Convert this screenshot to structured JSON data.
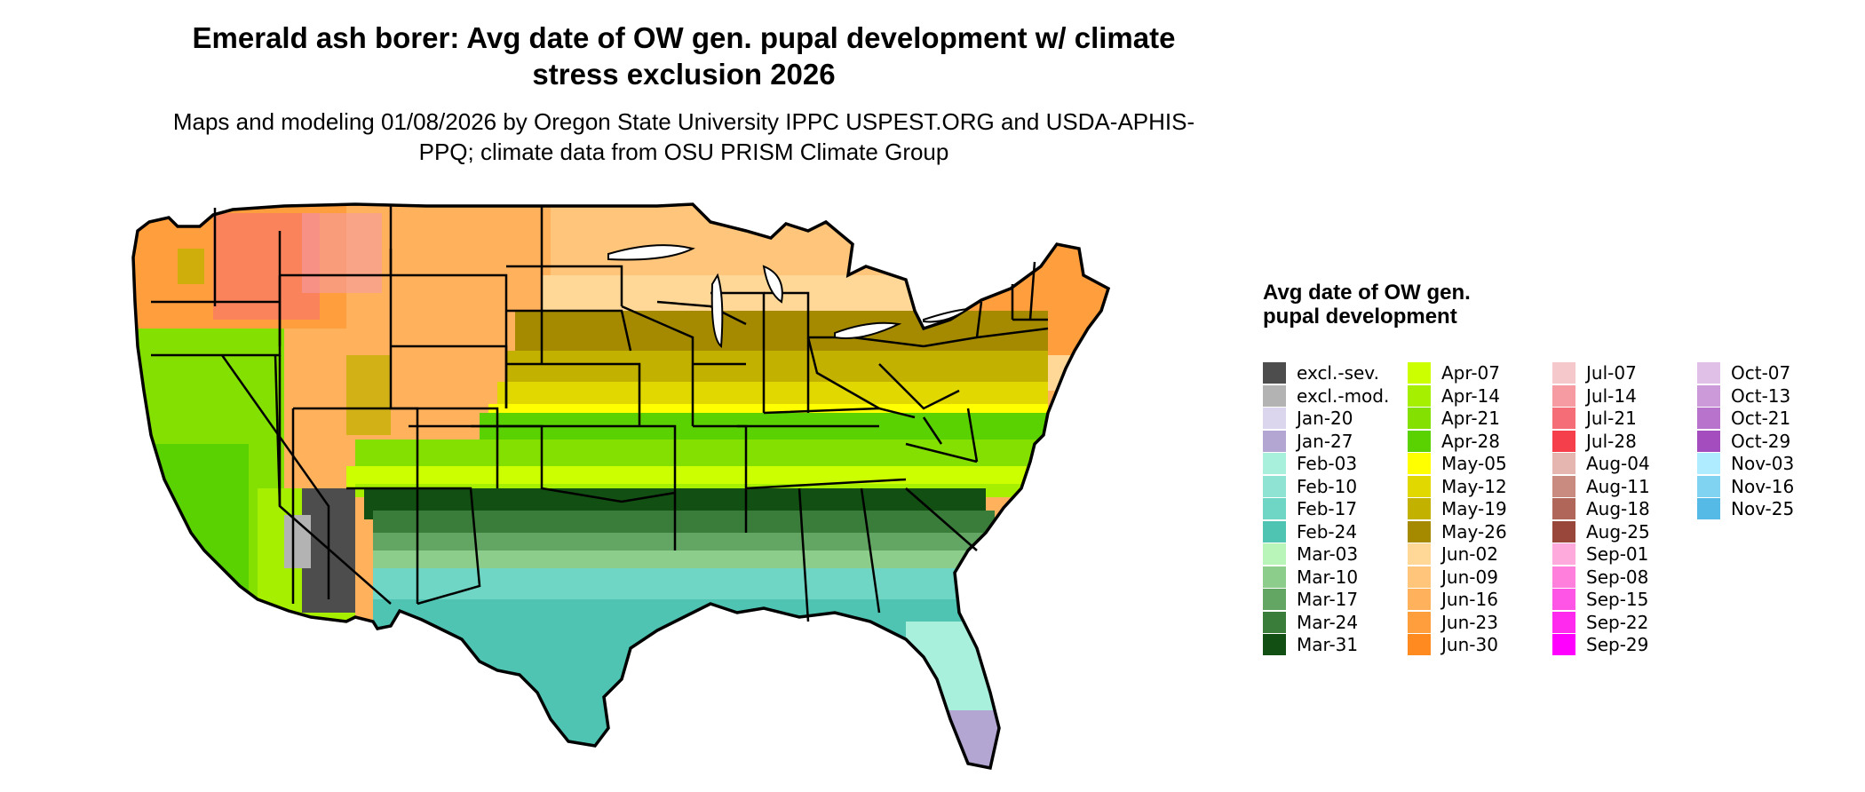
{
  "title": "Emerald ash borer: Avg date of OW gen. pupal development w/ climate stress exclusion 2026",
  "subtitle": "Maps and modeling 01/08/2026 by Oregon State University IPPC USPEST.ORG and USDA-APHIS-PPQ; climate data from OSU PRISM Climate Group",
  "legend": {
    "title": "Avg date of OW gen. pupal development",
    "items": [
      {
        "label": "excl.-sev.",
        "color": "#4d4d4d"
      },
      {
        "label": "excl.-mod.",
        "color": "#b3b3b3"
      },
      {
        "label": "Jan-20",
        "color": "#dcd5ee"
      },
      {
        "label": "Jan-27",
        "color": "#b3a6d2"
      },
      {
        "label": "Feb-03",
        "color": "#a8efdc"
      },
      {
        "label": "Feb-10",
        "color": "#8fe3d2"
      },
      {
        "label": "Feb-17",
        "color": "#6fd6c5"
      },
      {
        "label": "Feb-24",
        "color": "#4fc4b3"
      },
      {
        "label": "Mar-03",
        "color": "#b9f5b9"
      },
      {
        "label": "Mar-10",
        "color": "#8ccd8c"
      },
      {
        "label": "Mar-17",
        "color": "#63a563"
      },
      {
        "label": "Mar-24",
        "color": "#3a7c3a"
      },
      {
        "label": "Mar-31",
        "color": "#124f12"
      },
      {
        "label": "Apr-07",
        "color": "#ccff00"
      },
      {
        "label": "Apr-14",
        "color": "#a6ef00"
      },
      {
        "label": "Apr-21",
        "color": "#84e000"
      },
      {
        "label": "Apr-28",
        "color": "#5ad100"
      },
      {
        "label": "May-05",
        "color": "#ffff00"
      },
      {
        "label": "May-12",
        "color": "#e1d800"
      },
      {
        "label": "May-19",
        "color": "#c3b100"
      },
      {
        "label": "May-26",
        "color": "#a58a00"
      },
      {
        "label": "Jun-02",
        "color": "#ffd898"
      },
      {
        "label": "Jun-09",
        "color": "#ffc57a"
      },
      {
        "label": "Jun-16",
        "color": "#ffb15c"
      },
      {
        "label": "Jun-23",
        "color": "#ff9e3d"
      },
      {
        "label": "Jun-30",
        "color": "#ff8a1f"
      },
      {
        "label": "Jul-07",
        "color": "#f5c8cc"
      },
      {
        "label": "Jul-14",
        "color": "#f59ba1"
      },
      {
        "label": "Jul-21",
        "color": "#f56d76"
      },
      {
        "label": "Jul-28",
        "color": "#f5404b"
      },
      {
        "label": "Aug-04",
        "color": "#e5b5b0"
      },
      {
        "label": "Aug-11",
        "color": "#c98a80"
      },
      {
        "label": "Aug-18",
        "color": "#b06658"
      },
      {
        "label": "Aug-25",
        "color": "#98473a"
      },
      {
        "label": "Sep-01",
        "color": "#ffaadd"
      },
      {
        "label": "Sep-08",
        "color": "#ff7fdd"
      },
      {
        "label": "Sep-15",
        "color": "#ff55e6"
      },
      {
        "label": "Sep-22",
        "color": "#ff2aee"
      },
      {
        "label": "Sep-29",
        "color": "#ff00ff"
      },
      {
        "label": "Oct-07",
        "color": "#e0c0e6"
      },
      {
        "label": "Oct-13",
        "color": "#cc9ad9"
      },
      {
        "label": "Oct-21",
        "color": "#b873cc"
      },
      {
        "label": "Oct-29",
        "color": "#a34dbf"
      },
      {
        "label": "Nov-03",
        "color": "#b0ecff"
      },
      {
        "label": "Nov-16",
        "color": "#80d4f2"
      },
      {
        "label": "Nov-25",
        "color": "#55bbe6"
      }
    ]
  }
}
